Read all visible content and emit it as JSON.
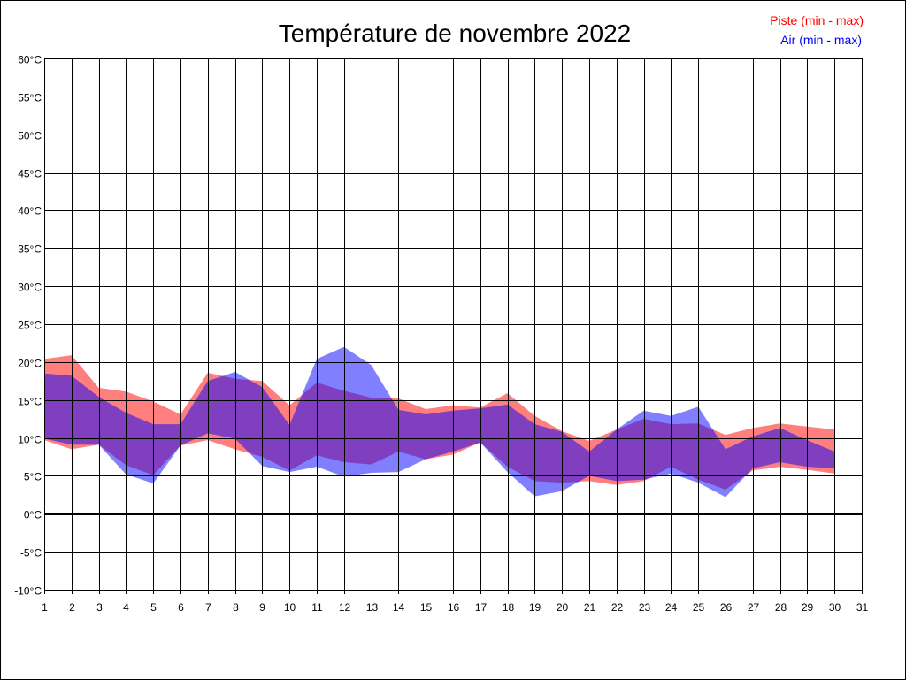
{
  "chart_data": {
    "type": "area",
    "title": "Température de novembre 2022",
    "xlabel": "",
    "ylabel": "",
    "xlim": [
      1,
      31
    ],
    "ylim": [
      -10,
      60
    ],
    "y_tick_step": 5,
    "y_tick_suffix": "°C",
    "x_ticks": [
      1,
      2,
      3,
      4,
      5,
      6,
      7,
      8,
      9,
      10,
      11,
      12,
      13,
      14,
      15,
      16,
      17,
      18,
      19,
      20,
      21,
      22,
      23,
      24,
      25,
      26,
      27,
      28,
      29,
      30,
      31
    ],
    "grid": true,
    "legend_position": "top-right",
    "x": [
      1,
      2,
      3,
      4,
      5,
      6,
      7,
      8,
      9,
      10,
      11,
      12,
      13,
      14,
      15,
      16,
      17,
      18,
      19,
      20,
      21,
      22,
      23,
      24,
      25,
      26,
      27,
      28,
      29,
      30
    ],
    "series": [
      {
        "name": "Piste (min - max)",
        "color": "#ff0000",
        "min": [
          9.7,
          8.5,
          9.1,
          6.4,
          5.1,
          9.0,
          9.7,
          8.5,
          7.5,
          5.7,
          7.7,
          6.8,
          6.5,
          8.2,
          7.2,
          7.8,
          9.4,
          6.2,
          4.3,
          4.1,
          4.3,
          3.8,
          4.3,
          6.2,
          4.5,
          3.2,
          5.7,
          6.2,
          5.8,
          5.3
        ],
        "max": [
          20.4,
          20.9,
          16.6,
          16.1,
          14.8,
          13.1,
          18.6,
          17.8,
          17.5,
          14.3,
          17.3,
          16.2,
          15.3,
          15.2,
          13.8,
          14.3,
          14.0,
          15.9,
          12.9,
          10.9,
          9.6,
          11.1,
          12.5,
          11.8,
          11.9,
          10.4,
          11.3,
          11.9,
          11.5,
          11.1
        ]
      },
      {
        "name": "Air (min - max)",
        "color": "#0000ff",
        "min": [
          9.9,
          9.1,
          9.1,
          5.2,
          4.0,
          9.0,
          10.6,
          9.9,
          6.3,
          5.5,
          6.2,
          4.9,
          5.4,
          5.5,
          7.2,
          8.2,
          9.4,
          5.5,
          2.3,
          3.0,
          5.0,
          4.3,
          4.5,
          5.3,
          4.1,
          2.2,
          6.0,
          6.8,
          6.2,
          6.0
        ],
        "max": [
          18.5,
          18.2,
          15.4,
          13.3,
          11.8,
          11.8,
          17.5,
          18.7,
          16.7,
          11.7,
          20.4,
          22.0,
          19.6,
          13.7,
          13.1,
          13.6,
          13.9,
          14.4,
          11.8,
          10.8,
          8.2,
          11.1,
          13.6,
          12.9,
          14.1,
          8.5,
          10.2,
          11.3,
          9.7,
          8.2
        ]
      }
    ]
  }
}
